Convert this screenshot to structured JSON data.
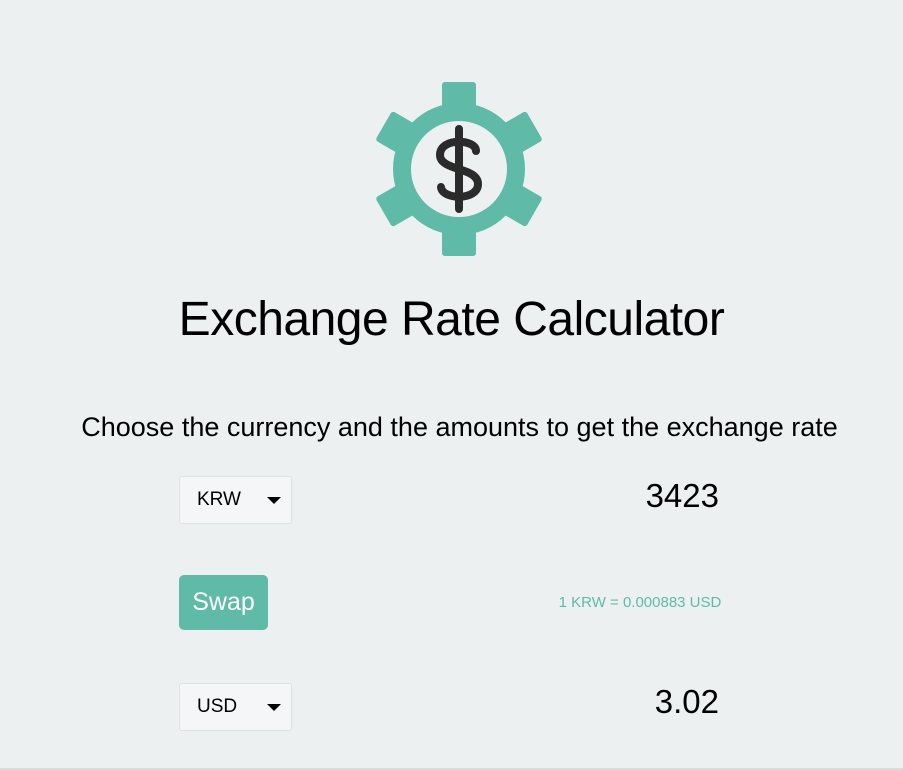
{
  "header": {
    "logo_icon": "gear-dollar-icon",
    "title": "Exchange Rate Calculator",
    "subtitle": "Choose the currency and the amounts to get the exchange rate"
  },
  "currency_one": {
    "selected": "KRW",
    "amount": "3423"
  },
  "swap": {
    "label": "Swap"
  },
  "rate": {
    "text": "1 KRW = 0.000883 USD"
  },
  "currency_two": {
    "selected": "USD",
    "amount": "3.02"
  },
  "colors": {
    "accent": "#5fbba7",
    "background": "#ecf0f1",
    "icon_dark": "#2b2b2b"
  }
}
